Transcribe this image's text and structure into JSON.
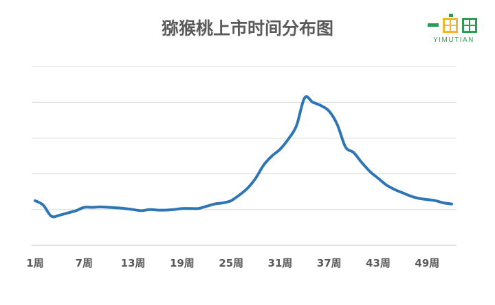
{
  "chart_data": {
    "type": "line",
    "title": "猕猴桃上市时间分布图",
    "xlabel": "",
    "ylabel": "",
    "x_ticks": [
      "1周",
      "7周",
      "13周",
      "19周",
      "25周",
      "31周",
      "37周",
      "43周",
      "49周"
    ],
    "gridlines": 6,
    "series": [
      {
        "color": "#2e75b6",
        "x": [
          1,
          2,
          3,
          4,
          5,
          6,
          7,
          8,
          9,
          10,
          11,
          12,
          13,
          14,
          15,
          16,
          17,
          18,
          19,
          20,
          21,
          22,
          23,
          24,
          25,
          26,
          27,
          28,
          29,
          30,
          31,
          32,
          33,
          34,
          35,
          36,
          37,
          38,
          39,
          40,
          41,
          42,
          43,
          44,
          45,
          46,
          47,
          48,
          49,
          50,
          51,
          52
        ],
        "values": [
          2.0,
          1.8,
          1.3,
          1.35,
          1.45,
          1.55,
          1.7,
          1.7,
          1.72,
          1.7,
          1.68,
          1.65,
          1.6,
          1.55,
          1.6,
          1.58,
          1.58,
          1.6,
          1.65,
          1.65,
          1.65,
          1.75,
          1.85,
          1.9,
          2.0,
          2.25,
          2.55,
          3.0,
          3.6,
          4.0,
          4.3,
          4.75,
          5.35,
          6.6,
          6.4,
          6.25,
          6.0,
          5.4,
          4.4,
          4.15,
          3.7,
          3.3,
          3.0,
          2.7,
          2.5,
          2.35,
          2.2,
          2.1,
          2.05,
          2.0,
          1.9,
          1.85
        ]
      }
    ],
    "ylim": [
      0,
      8
    ]
  },
  "logo": {
    "text": "YIMUTIAN",
    "colors": {
      "green": "#2a9d55",
      "yellow": "#f2b824"
    }
  }
}
